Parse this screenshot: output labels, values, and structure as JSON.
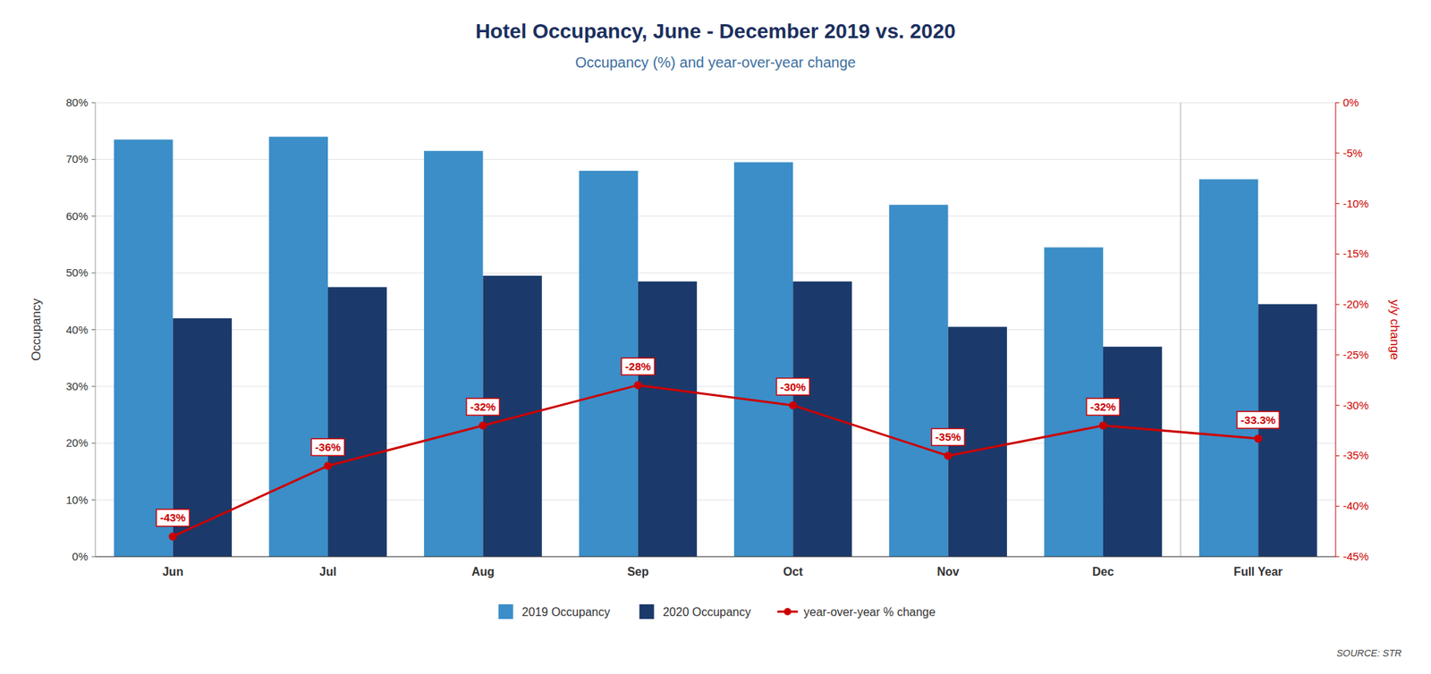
{
  "chart_data": {
    "type": "bar",
    "title": "Hotel Occupancy, June - December 2019 vs. 2020",
    "subtitle": "Occupancy (%) and year-over-year change",
    "categories": [
      "Jun",
      "Jul",
      "Aug",
      "Sep",
      "Oct",
      "Nov",
      "Dec",
      "Full Year"
    ],
    "series": [
      {
        "name": "2019 Occupancy",
        "color": "#3B8EC8",
        "values": [
          73.5,
          74.0,
          71.5,
          68.0,
          69.5,
          62.0,
          54.5,
          66.5
        ]
      },
      {
        "name": "2020 Occupancy",
        "color": "#1B3A6B",
        "values": [
          42.0,
          47.5,
          49.5,
          48.5,
          48.5,
          40.5,
          37.0,
          44.5
        ]
      },
      {
        "name": "year-over-year % change",
        "type": "line",
        "axis": "y2",
        "color": "#CC0000",
        "marker": "circle",
        "data_labels": true,
        "values": [
          -43,
          -36,
          -32,
          -28,
          -30,
          -35,
          -32,
          -33.3
        ],
        "value_labels": [
          "-43%",
          "-36%",
          "-32%",
          "-28%",
          "-30%",
          "-35%",
          "-32%",
          "-33.3%"
        ]
      }
    ],
    "ylabel": "Occupancy",
    "y2label": "y/y change",
    "ylim": [
      0,
      80
    ],
    "yticks": [
      {
        "value": 0,
        "label": "0%"
      },
      {
        "value": 10,
        "label": "10%"
      },
      {
        "value": 20,
        "label": "20%"
      },
      {
        "value": 30,
        "label": "30%"
      },
      {
        "value": 40,
        "label": "40%"
      },
      {
        "value": 50,
        "label": "50%"
      },
      {
        "value": 60,
        "label": "60%"
      },
      {
        "value": 70,
        "label": "70%"
      },
      {
        "value": 80,
        "label": "80%"
      }
    ],
    "y2lim": [
      -45,
      0
    ],
    "y2ticks": [
      {
        "value": 0,
        "label": "0%"
      },
      {
        "value": -5,
        "label": "-5%"
      },
      {
        "value": -10,
        "label": "-10%"
      },
      {
        "value": -15,
        "label": "-15%"
      },
      {
        "value": -20,
        "label": "-20%"
      },
      {
        "value": -25,
        "label": "-25%"
      },
      {
        "value": -30,
        "label": "-30%"
      },
      {
        "value": -35,
        "label": "-35%"
      },
      {
        "value": -40,
        "label": "-40%"
      },
      {
        "value": -45,
        "label": "-45%"
      }
    ],
    "grid": true,
    "legend": "bottom",
    "annotations": [
      "SOURCE: STR"
    ]
  }
}
